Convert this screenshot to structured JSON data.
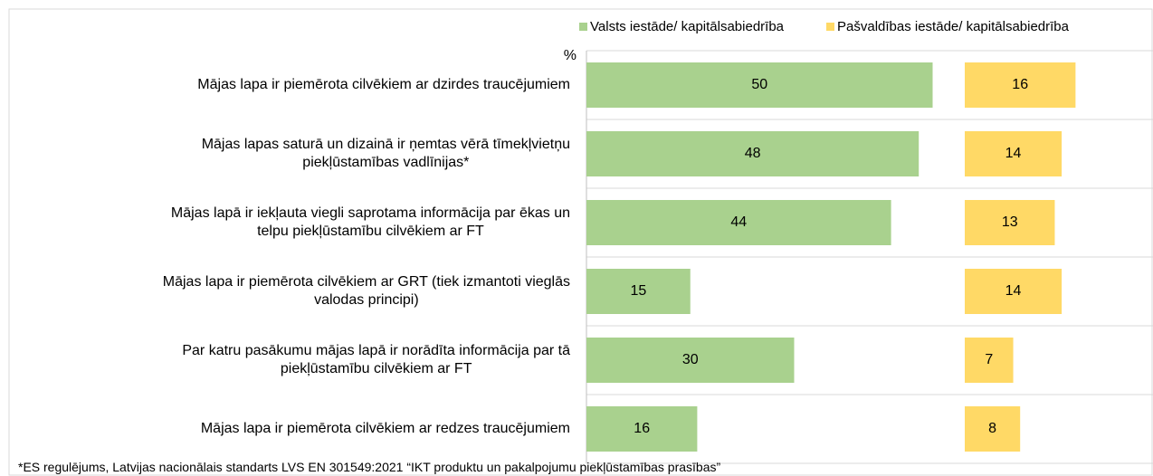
{
  "chart_data": {
    "type": "bar",
    "orientation": "horizontal",
    "unit_label": "%",
    "categories": [
      "Mājas lapa ir piemērota cilvēkiem ar dzirdes traucējumiem",
      "Mājas lapas saturā un dizainā ir ņemtas vērā tīmekļvietņu\npiekļūstamības vadlīnijas*",
      "Mājas lapā ir iekļauta viegli saprotama informācija par ēkas un\ntelpu piekļūstamību cilvēkiem ar FT",
      "Mājas lapa ir piemērota cilvēkiem ar GRT (tiek izmantoti vieglās\nvalodas principi)",
      "Par katru pasākumu mājas lapā ir norādīta informācija par tā\npiekļūstamību cilvēkiem ar FT",
      "Mājas lapa ir piemērota cilvēkiem ar redzes traucējumiem"
    ],
    "series": [
      {
        "name": "Valsts iestāde/ kapitālsabiedrība",
        "color": "#a9d18e",
        "values": [
          50,
          48,
          44,
          15,
          30,
          16
        ]
      },
      {
        "name": "Pašvaldības iestāde/ kapitālsabiedrība",
        "color": "#ffd966",
        "values": [
          16,
          14,
          13,
          14,
          7,
          8
        ]
      }
    ],
    "footnote": "*ES regulējums, Latvijas nacionālais standarts LVS EN 301549:2021 “IKT produktu un pakalpojumu piekļūstamības prasības”"
  }
}
